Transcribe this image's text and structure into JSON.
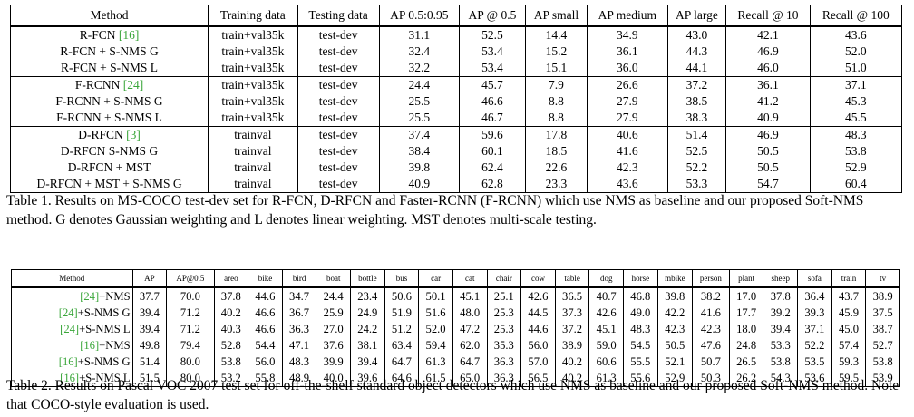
{
  "table1": {
    "headers": [
      "Method",
      "Training data",
      "Testing data",
      "AP 0.5:0.95",
      "AP @ 0.5",
      "AP small",
      "AP medium",
      "AP large",
      "Recall @ 10",
      "Recall @ 100"
    ],
    "groups": [
      [
        {
          "method": "R-FCN ",
          "cite": "[16]",
          "cells": [
            [
              "train+val35k",
              0
            ],
            [
              "test-dev",
              0
            ],
            [
              "31.1",
              0
            ],
            [
              "52.5",
              0
            ],
            [
              "14.4",
              0
            ],
            [
              "34.9",
              0
            ],
            [
              "43.0",
              0
            ],
            [
              "42.1",
              0
            ],
            [
              "43.6",
              0
            ]
          ]
        },
        {
          "method": "R-FCN + S-NMS G",
          "cite": "",
          "cells": [
            [
              "train+val35k",
              0
            ],
            [
              "test-dev",
              0
            ],
            [
              "32.4",
              1
            ],
            [
              "53.4",
              1
            ],
            [
              "15.2",
              1
            ],
            [
              "36.1",
              1
            ],
            [
              "44.3",
              1
            ],
            [
              "46.9",
              1
            ],
            [
              "52.0",
              1
            ]
          ]
        },
        {
          "method": "R-FCN + S-NMS L",
          "cite": "",
          "cells": [
            [
              "train+val35k",
              0
            ],
            [
              "test-dev",
              0
            ],
            [
              "32.2",
              0
            ],
            [
              "53.4",
              1
            ],
            [
              "15.1",
              0
            ],
            [
              "36.0",
              0
            ],
            [
              "44.1",
              0
            ],
            [
              "46.0",
              0
            ],
            [
              "51.0",
              0
            ]
          ]
        }
      ],
      [
        {
          "method": "F-RCNN ",
          "cite": "[24]",
          "cells": [
            [
              "train+val35k",
              0
            ],
            [
              "test-dev",
              0
            ],
            [
              "24.4",
              0
            ],
            [
              "45.7",
              0
            ],
            [
              "7.9",
              0
            ],
            [
              "26.6",
              0
            ],
            [
              "37.2",
              0
            ],
            [
              "36.1",
              0
            ],
            [
              "37.1",
              0
            ]
          ]
        },
        {
          "method": "F-RCNN + S-NMS G",
          "cite": "",
          "cells": [
            [
              "train+val35k",
              0
            ],
            [
              "test-dev",
              0
            ],
            [
              "25.5",
              1
            ],
            [
              "46.6",
              0
            ],
            [
              "8.8",
              1
            ],
            [
              "27.9",
              1
            ],
            [
              "38.5",
              1
            ],
            [
              "41.2",
              1
            ],
            [
              "45.3",
              0
            ]
          ]
        },
        {
          "method": "F-RCNN + S-NMS L",
          "cite": "",
          "cells": [
            [
              "train+val35k",
              0
            ],
            [
              "test-dev",
              0
            ],
            [
              "25.5",
              1
            ],
            [
              "46.7",
              1
            ],
            [
              "8.8",
              1
            ],
            [
              "27.9",
              1
            ],
            [
              "38.3",
              0
            ],
            [
              "40.9",
              0
            ],
            [
              "45.5",
              1
            ]
          ]
        }
      ],
      [
        {
          "method": "D-RFCN ",
          "cite": "[3]",
          "cells": [
            [
              "trainval",
              0
            ],
            [
              "test-dev",
              0
            ],
            [
              "37.4",
              0
            ],
            [
              "59.6",
              0
            ],
            [
              "17.8",
              0
            ],
            [
              "40.6",
              0
            ],
            [
              "51.4",
              0
            ],
            [
              "46.9",
              0
            ],
            [
              "48.3",
              0
            ]
          ]
        },
        {
          "method": "D-RFCN S-NMS G",
          "cite": "",
          "cells": [
            [
              "trainval",
              0
            ],
            [
              "test-dev",
              0
            ],
            [
              "38.4",
              1
            ],
            [
              "60.1",
              1
            ],
            [
              "18.5",
              1
            ],
            [
              "41.6",
              1
            ],
            [
              "52.5",
              1
            ],
            [
              "50.5",
              1
            ],
            [
              "53.8",
              1
            ]
          ]
        },
        {
          "method": "D-RFCN + MST",
          "cite": "",
          "cells": [
            [
              "trainval",
              0
            ],
            [
              "test-dev",
              0
            ],
            [
              "39.8",
              0
            ],
            [
              "62.4",
              0
            ],
            [
              "22.6",
              0
            ],
            [
              "42.3",
              0
            ],
            [
              "52.2",
              0
            ],
            [
              "50.5",
              0
            ],
            [
              "52.9",
              0
            ]
          ]
        },
        {
          "method": "D-RFCN + MST + S-NMS G",
          "cite": "",
          "cells": [
            [
              "trainval",
              0
            ],
            [
              "test-dev",
              0
            ],
            [
              "40.9",
              1
            ],
            [
              "62.8",
              1
            ],
            [
              "23.3",
              1
            ],
            [
              "43.6",
              1
            ],
            [
              "53.3",
              1
            ],
            [
              "54.7",
              1
            ],
            [
              "60.4",
              1
            ]
          ]
        }
      ]
    ],
    "caption": "Table 1. Results on MS-COCO test-dev set for R-FCN, D-RFCN and Faster-RCNN (F-RCNN) which use NMS as baseline and our proposed Soft-NMS method. G denotes Gaussian weighting and L denotes linear weighting. MST denotes multi-scale testing."
  },
  "table2": {
    "headers": [
      "Method",
      "AP",
      "AP@0.5",
      "areo",
      "bike",
      "bird",
      "boat",
      "bottle",
      "bus",
      "car",
      "cat",
      "chair",
      "cow",
      "table",
      "dog",
      "horse",
      "mbike",
      "person",
      "plant",
      "sheep",
      "sofa",
      "train",
      "tv"
    ],
    "rows": [
      {
        "cite": "[24]",
        "method": "+NMS",
        "cells": [
          [
            "37.7",
            0
          ],
          [
            "70.0",
            0
          ],
          [
            "37.8",
            0
          ],
          [
            "44.6",
            0
          ],
          [
            "34.7",
            0
          ],
          [
            "24.4",
            0
          ],
          [
            "23.4",
            0
          ],
          [
            "50.6",
            0
          ],
          [
            "50.1",
            0
          ],
          [
            "45.1",
            0
          ],
          [
            "25.1",
            0
          ],
          [
            "42.6",
            0
          ],
          [
            "36.5",
            0
          ],
          [
            "40.7",
            0
          ],
          [
            "46.8",
            0
          ],
          [
            "39.8",
            0
          ],
          [
            "38.2",
            0
          ],
          [
            "17.0",
            0
          ],
          [
            "37.8",
            0
          ],
          [
            "36.4",
            0
          ],
          [
            "43.7",
            0
          ],
          [
            "38.9",
            1
          ]
        ]
      },
      {
        "cite": "[24]",
        "method": "+S-NMS G",
        "cells": [
          [
            "39.4",
            1
          ],
          [
            "71.2",
            1
          ],
          [
            "40.2",
            0
          ],
          [
            "46.6",
            1
          ],
          [
            "36.7",
            1
          ],
          [
            "25.9",
            0
          ],
          [
            "24.9",
            1
          ],
          [
            "51.9",
            1
          ],
          [
            "51.6",
            0
          ],
          [
            "48.0",
            1
          ],
          [
            "25.3",
            1
          ],
          [
            "44.5",
            0
          ],
          [
            "37.3",
            1
          ],
          [
            "42.6",
            0
          ],
          [
            "49.0",
            1
          ],
          [
            "42.2",
            0
          ],
          [
            "41.6",
            0
          ],
          [
            "17.7",
            0
          ],
          [
            "39.2",
            0
          ],
          [
            "39.3",
            1
          ],
          [
            "45.9",
            1
          ],
          [
            "37.5",
            0
          ]
        ]
      },
      {
        "cite": "[24]",
        "method": "+S-NMS L",
        "cells": [
          [
            "39.4",
            1
          ],
          [
            "71.2",
            1
          ],
          [
            "40.3",
            1
          ],
          [
            "46.6",
            1
          ],
          [
            "36.3",
            0
          ],
          [
            "27.0",
            1
          ],
          [
            "24.2",
            0
          ],
          [
            "51.2",
            0
          ],
          [
            "52.0",
            1
          ],
          [
            "47.2",
            0
          ],
          [
            "25.3",
            1
          ],
          [
            "44.6",
            1
          ],
          [
            "37.2",
            0
          ],
          [
            "45.1",
            1
          ],
          [
            "48.3",
            0
          ],
          [
            "42.3",
            1
          ],
          [
            "42.3",
            1
          ],
          [
            "18.0",
            1
          ],
          [
            "39.4",
            1
          ],
          [
            "37.1",
            0
          ],
          [
            "45.0",
            0
          ],
          [
            "38.7",
            0
          ]
        ]
      },
      {
        "cite": "[16]",
        "method": "+NMS",
        "cells": [
          [
            "49.8",
            0
          ],
          [
            "79.4",
            0
          ],
          [
            "52.8",
            0
          ],
          [
            "54.4",
            0
          ],
          [
            "47.1",
            0
          ],
          [
            "37.6",
            0
          ],
          [
            "38.1",
            0
          ],
          [
            "63.4",
            0
          ],
          [
            "59.4",
            0
          ],
          [
            "62.0",
            0
          ],
          [
            "35.3",
            0
          ],
          [
            "56.0",
            0
          ],
          [
            "38.9",
            0
          ],
          [
            "59.0",
            0
          ],
          [
            "54.5",
            0
          ],
          [
            "50.5",
            0
          ],
          [
            "47.6",
            0
          ],
          [
            "24.8",
            0
          ],
          [
            "53.3",
            0
          ],
          [
            "52.2",
            0
          ],
          [
            "57.4",
            0
          ],
          [
            "52.7",
            0
          ]
        ]
      },
      {
        "cite": "[16]",
        "method": "+S-NMS G",
        "cells": [
          [
            "51.4",
            0
          ],
          [
            "80.0",
            1
          ],
          [
            "53.8",
            1
          ],
          [
            "56.0",
            1
          ],
          [
            "48.3",
            0
          ],
          [
            "39.9",
            0
          ],
          [
            "39.4",
            0
          ],
          [
            "64.7",
            1
          ],
          [
            "61.3",
            0
          ],
          [
            "64.7",
            0
          ],
          [
            "36.3",
            1
          ],
          [
            "57.0",
            1
          ],
          [
            "40.2",
            1
          ],
          [
            "60.6",
            0
          ],
          [
            "55.5",
            0
          ],
          [
            "52.1",
            0
          ],
          [
            "50.7",
            1
          ],
          [
            "26.5",
            1
          ],
          [
            "53.8",
            0
          ],
          [
            "53.5",
            0
          ],
          [
            "59.3",
            0
          ],
          [
            "53.8",
            0
          ]
        ]
      },
      {
        "cite": "[16]",
        "method": "+S-NMS L",
        "cells": [
          [
            "51.5",
            1
          ],
          [
            "80.0",
            1
          ],
          [
            "53.2",
            0
          ],
          [
            "55.8",
            0
          ],
          [
            "48.9",
            1
          ],
          [
            "40.0",
            1
          ],
          [
            "39.6",
            1
          ],
          [
            "64.6",
            0
          ],
          [
            "61.5",
            1
          ],
          [
            "65.0",
            1
          ],
          [
            "36.3",
            1
          ],
          [
            "56.5",
            0
          ],
          [
            "40.2",
            1
          ],
          [
            "61.3",
            1
          ],
          [
            "55.6",
            1
          ],
          [
            "52.9",
            1
          ],
          [
            "50.3",
            0
          ],
          [
            "26.2",
            0
          ],
          [
            "54.3",
            1
          ],
          [
            "53.6",
            1
          ],
          [
            "59.5",
            1
          ],
          [
            "53.9",
            1
          ]
        ]
      }
    ],
    "caption": "Table 2. Results on Pascal VOC 2007 test set for off-the-shelf standard object detectors which use NMS as baseline and our proposed Soft-NMS method. Note that COCO-style evaluation is used."
  }
}
